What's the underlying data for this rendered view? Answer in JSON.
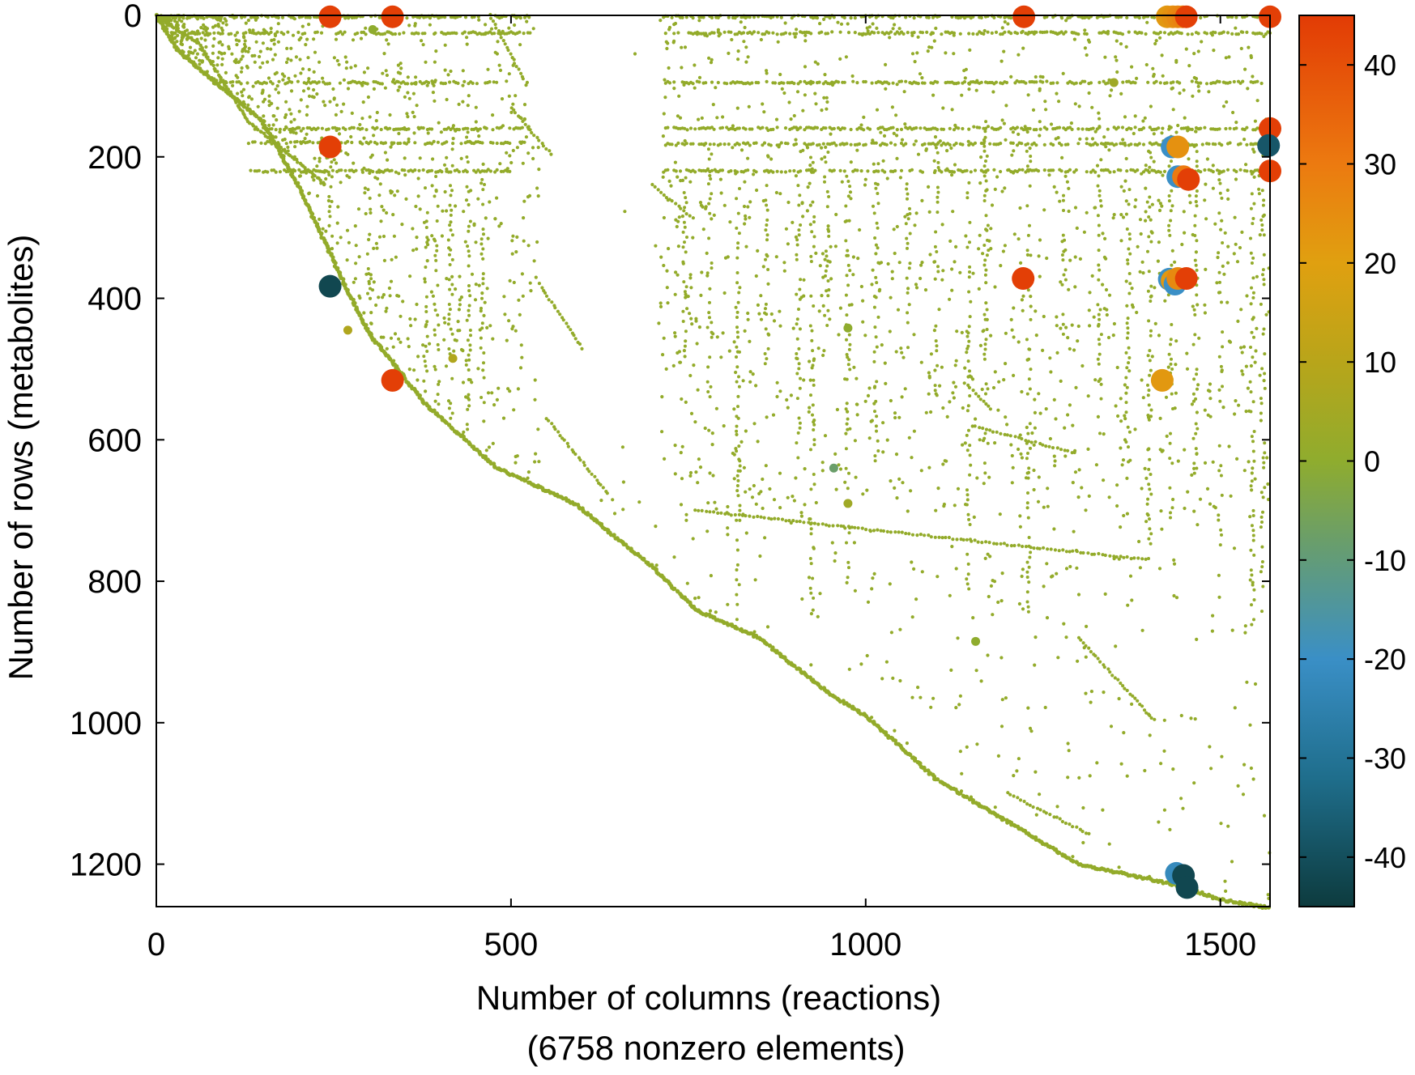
{
  "chart_data": {
    "type": "scatter",
    "title": "",
    "xlabel": "Number of columns (reactions)",
    "xlabel_sub": "(6758 nonzero elements)",
    "ylabel": "Number of rows (metabolites)",
    "xlim": [
      0,
      1570
    ],
    "ylim": [
      1260,
      0
    ],
    "y_inverted": true,
    "x_ticks": [
      0,
      500,
      1000,
      1500
    ],
    "y_ticks": [
      0,
      200,
      400,
      600,
      800,
      1000,
      1200
    ],
    "grid": false,
    "legend": "none",
    "colorbar": {
      "range": [
        -45,
        45
      ],
      "ticks": [
        40,
        30,
        20,
        10,
        0,
        -10,
        -20,
        -30,
        -40
      ],
      "placement": "right",
      "stops": [
        {
          "v": -45,
          "color": "#0d3b3e"
        },
        {
          "v": -32,
          "color": "#1f6e8c"
        },
        {
          "v": -20,
          "color": "#3a8fc6"
        },
        {
          "v": -8,
          "color": "#6a9e6a"
        },
        {
          "v": 0,
          "color": "#8fac2e"
        },
        {
          "v": 10,
          "color": "#b8a51a"
        },
        {
          "v": 20,
          "color": "#e0a010"
        },
        {
          "v": 30,
          "color": "#ec7a10"
        },
        {
          "v": 45,
          "color": "#e23b05"
        }
      ]
    },
    "base_color": "#93ab2a",
    "diagonal_band": [
      [
        0,
        0
      ],
      [
        30,
        50
      ],
      [
        90,
        100
      ],
      [
        150,
        150
      ],
      [
        200,
        240
      ],
      [
        270,
        390
      ],
      [
        300,
        450
      ],
      [
        380,
        550
      ],
      [
        480,
        640
      ],
      [
        590,
        690
      ],
      [
        650,
        740
      ],
      [
        700,
        780
      ],
      [
        760,
        840
      ],
      [
        850,
        880
      ],
      [
        950,
        960
      ],
      [
        1000,
        990
      ],
      [
        1100,
        1080
      ],
      [
        1200,
        1140
      ],
      [
        1300,
        1200
      ],
      [
        1440,
        1230
      ],
      [
        1500,
        1250
      ],
      [
        1570,
        1262
      ]
    ],
    "secondary_diagonal": [
      [
        5,
        5
      ],
      [
        60,
        40
      ],
      [
        130,
        150
      ],
      [
        240,
        240
      ]
    ],
    "dense_row_bands": [
      {
        "y": 2,
        "x0": 0,
        "x1": 530
      },
      {
        "y": 2,
        "x0": 715,
        "x1": 1570
      },
      {
        "y": 25,
        "x0": 40,
        "x1": 530
      },
      {
        "y": 25,
        "x0": 715,
        "x1": 1570
      },
      {
        "y": 95,
        "x0": 75,
        "x1": 480
      },
      {
        "y": 95,
        "x0": 715,
        "x1": 1560
      },
      {
        "y": 160,
        "x0": 130,
        "x1": 530
      },
      {
        "y": 160,
        "x0": 715,
        "x1": 1570
      },
      {
        "y": 180,
        "x0": 130,
        "x1": 520
      },
      {
        "y": 182,
        "x0": 715,
        "x1": 1570
      },
      {
        "y": 220,
        "x0": 130,
        "x1": 500
      },
      {
        "y": 220,
        "x0": 715,
        "x1": 1570
      }
    ],
    "block_line_segments": [
      [
        [
          470,
          0
        ],
        [
          520,
          95
        ]
      ],
      [
        [
          500,
          130
        ],
        [
          560,
          200
        ]
      ],
      [
        [
          540,
          380
        ],
        [
          600,
          470
        ]
      ],
      [
        [
          550,
          570
        ],
        [
          640,
          680
        ]
      ],
      [
        [
          700,
          240
        ],
        [
          760,
          290
        ]
      ],
      [
        [
          1150,
          580
        ],
        [
          1300,
          620
        ]
      ],
      [
        [
          1140,
          520
        ],
        [
          1180,
          560
        ]
      ],
      [
        [
          1300,
          880
        ],
        [
          1410,
          1000
        ]
      ],
      [
        [
          1200,
          1100
        ],
        [
          1320,
          1160
        ]
      ],
      [
        [
          760,
          700
        ],
        [
          1400,
          770
        ]
      ]
    ],
    "large_points": [
      {
        "x": 245,
        "y": 2,
        "v": 44
      },
      {
        "x": 333,
        "y": 2,
        "v": 44
      },
      {
        "x": 1223,
        "y": 2,
        "v": 44
      },
      {
        "x": 1425,
        "y": 2,
        "v": 22
      },
      {
        "x": 1433,
        "y": 2,
        "v": 24
      },
      {
        "x": 1440,
        "y": 2,
        "v": 26
      },
      {
        "x": 1447,
        "y": 2,
        "v": 28
      },
      {
        "x": 1452,
        "y": 2,
        "v": 44
      },
      {
        "x": 1570,
        "y": 2,
        "v": 44
      },
      {
        "x": 245,
        "y": 186,
        "v": 44
      },
      {
        "x": 1570,
        "y": 160,
        "v": 44
      },
      {
        "x": 1568,
        "y": 184,
        "v": -38
      },
      {
        "x": 1570,
        "y": 220,
        "v": 44
      },
      {
        "x": 1432,
        "y": 186,
        "v": -20
      },
      {
        "x": 1440,
        "y": 186,
        "v": 24
      },
      {
        "x": 1440,
        "y": 228,
        "v": -20
      },
      {
        "x": 1448,
        "y": 228,
        "v": 30
      },
      {
        "x": 1455,
        "y": 232,
        "v": 44
      },
      {
        "x": 245,
        "y": 383,
        "v": -42
      },
      {
        "x": 1222,
        "y": 372,
        "v": 44
      },
      {
        "x": 1428,
        "y": 373,
        "v": -20
      },
      {
        "x": 1432,
        "y": 375,
        "v": 22
      },
      {
        "x": 1436,
        "y": 380,
        "v": -20
      },
      {
        "x": 1440,
        "y": 372,
        "v": 26
      },
      {
        "x": 1452,
        "y": 372,
        "v": 44
      },
      {
        "x": 333,
        "y": 516,
        "v": 44
      },
      {
        "x": 1418,
        "y": 516,
        "v": 22
      },
      {
        "x": 1438,
        "y": 1213,
        "v": -22
      },
      {
        "x": 1448,
        "y": 1216,
        "v": -42
      },
      {
        "x": 1453,
        "y": 1233,
        "v": -42
      }
    ],
    "medium_points": [
      {
        "x": 305,
        "y": 20,
        "v": 0
      },
      {
        "x": 270,
        "y": 445,
        "v": 8
      },
      {
        "x": 418,
        "y": 485,
        "v": 8
      },
      {
        "x": 955,
        "y": 640,
        "v": -8
      },
      {
        "x": 975,
        "y": 442,
        "v": 0
      },
      {
        "x": 975,
        "y": 690,
        "v": 4
      },
      {
        "x": 1350,
        "y": 95,
        "v": 4
      },
      {
        "x": 1155,
        "y": 885,
        "v": 0
      }
    ]
  }
}
